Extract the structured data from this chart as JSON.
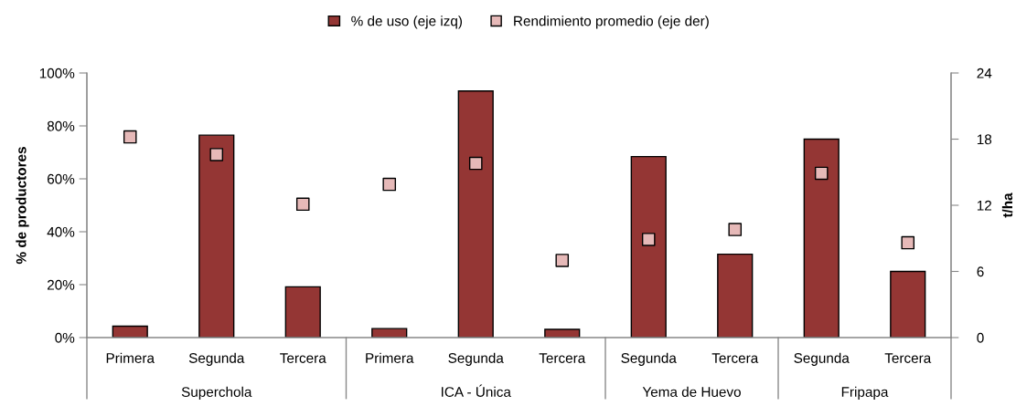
{
  "chart_data": {
    "type": "bar",
    "categories": [
      "Primera",
      "Segunda",
      "Tercera",
      "Primera",
      "Segunda",
      "Tercera",
      "Segunda",
      "Tercera",
      "Segunda",
      "Tercera"
    ],
    "series": [
      {
        "name": "% de uso (eje izq)",
        "color": "#943634",
        "values": [
          4.3,
          76.5,
          19.2,
          3.4,
          93.2,
          3.1,
          68.4,
          31.5,
          75.0,
          25.0
        ]
      },
      {
        "name": "Rendimiento promedio (eje der)",
        "type": "scatter",
        "axis": "y2",
        "color": "#e6b9b8",
        "marker": "square",
        "values": [
          18.2,
          16.6,
          12.1,
          13.9,
          15.8,
          7.0,
          8.9,
          9.8,
          14.9,
          8.6
        ]
      }
    ],
    "ylabel": "% de productores",
    "y2label": "t/ha",
    "ylim": [
      0,
      100
    ],
    "yticks": [
      {
        "value": 0,
        "label": "0%"
      },
      {
        "value": 20,
        "label": "20%"
      },
      {
        "value": 40,
        "label": "40%"
      },
      {
        "value": 60,
        "label": "60%"
      },
      {
        "value": 80,
        "label": "80%"
      },
      {
        "value": 100,
        "label": "100%"
      }
    ],
    "y2lim": [
      0,
      24
    ],
    "y2ticks": [
      0,
      6,
      12,
      18,
      24
    ],
    "annotations": [
      "Superchola",
      "ICA - Única",
      "Yema de Huevo",
      "Fripapa"
    ],
    "legend": "top",
    "grid": false
  }
}
